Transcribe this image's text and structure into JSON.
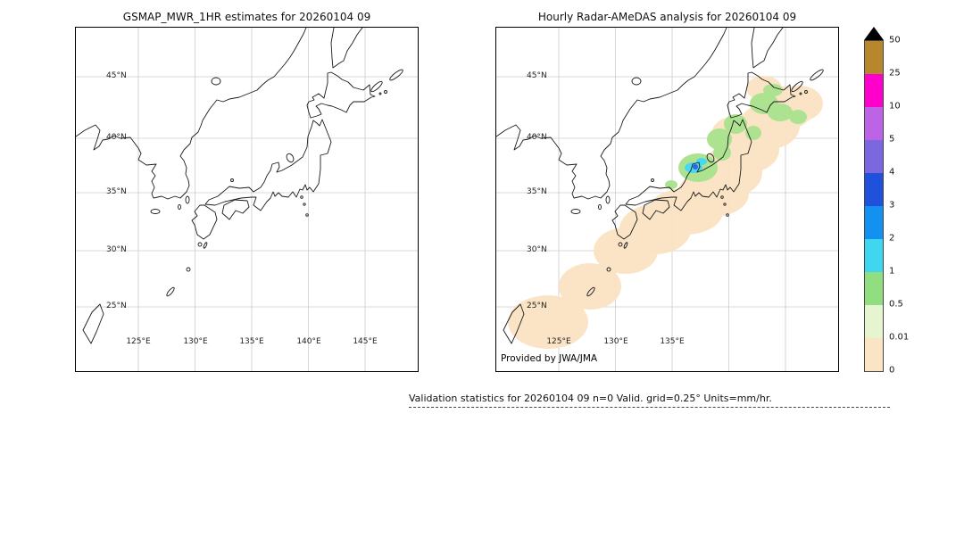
{
  "titles": {
    "left_panel": "GSMAP_MWR_1HR estimates for 20260104 09",
    "right_panel": "Hourly Radar-AMeDAS analysis for 20260104 09"
  },
  "axes": {
    "lat_labels": [
      "45°N",
      "40°N",
      "35°N",
      "30°N",
      "25°N"
    ],
    "lon_labels_left": [
      "125°E",
      "130°E",
      "135°E",
      "140°E",
      "145°E"
    ],
    "lon_labels_right": [
      "125°E",
      "130°E",
      "135°E"
    ]
  },
  "right_panel": {
    "credit": "Provided by JWA/JMA"
  },
  "colorbar": {
    "tick_labels": [
      "50",
      "25",
      "10",
      "5",
      "4",
      "3",
      "2",
      "1",
      "0.5",
      "0.01",
      "0"
    ],
    "segment_colors_top_to_bottom": [
      "#b8862d",
      "#ff00cc",
      "#bd63e6",
      "#7b68de",
      "#1f51dd",
      "#1291f0",
      "#3fd6f0",
      "#90de7f",
      "#e6f4cf",
      "#fbe4c4"
    ],
    "overflow_triangle_color": "#000000"
  },
  "overlay_colors": {
    "trace": "#fbe3c2",
    "light": "#a9e18c",
    "moderate": "#3fd6f0",
    "heavy": "#2a5ce0"
  },
  "footer": {
    "annotation": "Validation statistics for 20260104 09  n=0 Valid. grid=0.25° Units=mm/hr."
  },
  "chart_data": [
    {
      "type": "heatmap",
      "title": "GSMAP_MWR_1HR estimates for 20260104 09",
      "x": {
        "label": "longitude",
        "ticks": [
          "125°E",
          "130°E",
          "135°E",
          "140°E",
          "145°E"
        ]
      },
      "y": {
        "label": "latitude",
        "ticks": [
          "45°N",
          "40°N",
          "35°N",
          "30°N",
          "25°N"
        ]
      },
      "units": "mm/hr",
      "levels": [
        0,
        0.01,
        0.5,
        1,
        2,
        3,
        4,
        5,
        10,
        25,
        50
      ],
      "values": "no precipitation estimates plotted (empty coastline map of Japan region)"
    },
    {
      "type": "heatmap",
      "title": "Hourly Radar-AMeDAS analysis for 20260104 09",
      "x": {
        "label": "longitude",
        "ticks": [
          "125°E",
          "130°E",
          "135°E"
        ]
      },
      "y": {
        "label": "latitude",
        "ticks": [
          "45°N",
          "40°N",
          "35°N",
          "30°N",
          "25°N"
        ]
      },
      "units": "mm/hr",
      "levels": [
        0,
        0.01,
        0.5,
        1,
        2,
        3,
        4,
        5,
        10,
        25,
        50
      ],
      "legend_position": "right colorbar with black overflow triangle for >50",
      "regions": [
        {
          "value_range_mm_hr": [
            0,
            0.5
          ],
          "description": "broad trace-precipitation band from Okinawa (~26N,128E) northeast across Kyushu, Shikoku and Honshu to eastern Hokkaido (~44N,145E)"
        },
        {
          "value_range_mm_hr": [
            0.5,
            1
          ],
          "description": "light-rain patches along the Sea of Japan coast of northern Honshu and over southern and eastern Hokkaido"
        },
        {
          "value_range_mm_hr": [
            1,
            3
          ],
          "description": "small cyan cells near the Noto peninsula / Niigata coast (~37.5N,137.5E)"
        },
        {
          "value_range_mm_hr": [
            3,
            5
          ],
          "description": "tiny embedded blue maximum inside the Noto/Niigata cell"
        }
      ],
      "validation_stats": {
        "n": 0,
        "grid": "0.25°",
        "units": "mm/hr"
      }
    }
  ]
}
